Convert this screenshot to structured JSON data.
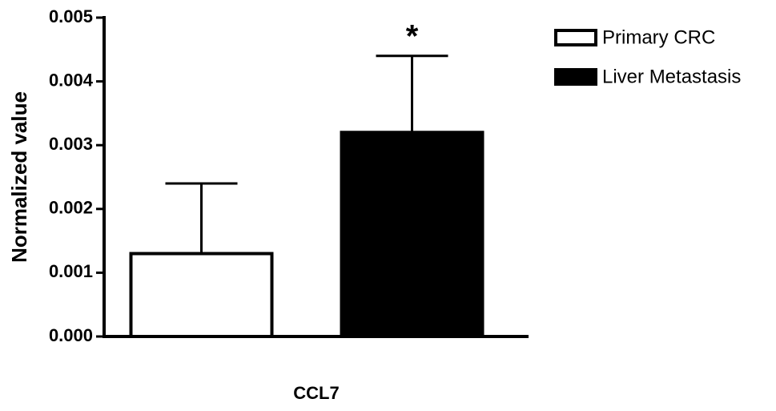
{
  "chart_data": {
    "type": "bar",
    "categories": [
      "CCL7"
    ],
    "ylabel": "Normalized value",
    "series": [
      {
        "name": "Primary CRC",
        "color": "#ffffff",
        "values": [
          0.0013
        ],
        "errors": [
          0.0011
        ]
      },
      {
        "name": "Liver Metastasis",
        "color": "#000000",
        "values": [
          0.0032
        ],
        "errors": [
          0.0012
        ]
      }
    ],
    "annotation": "*",
    "ylim": [
      0,
      0.005
    ],
    "yticks": [
      {
        "value": 0,
        "label": "0.000"
      },
      0.001,
      0.002,
      0.003,
      0.004,
      0.005
    ]
  }
}
